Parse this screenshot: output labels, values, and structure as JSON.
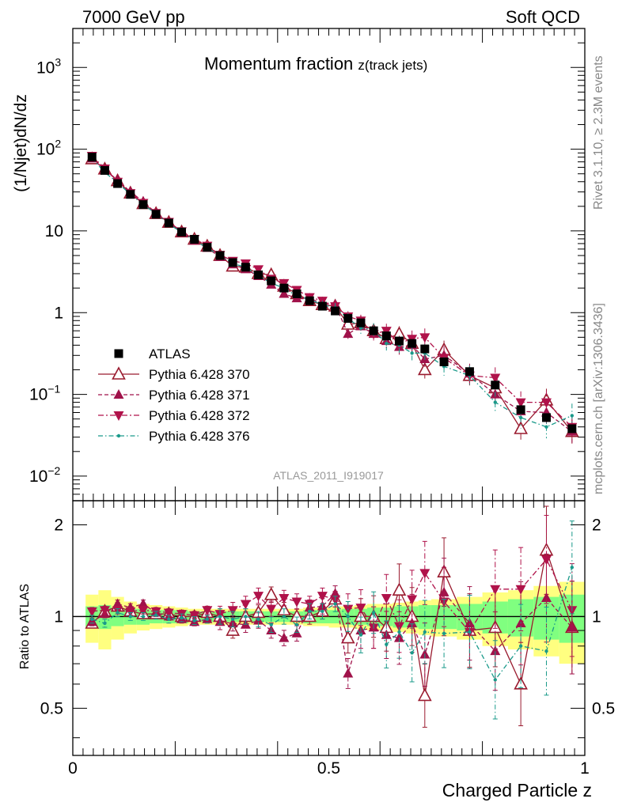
{
  "header": {
    "left": "7000 GeV pp",
    "right": "Soft QCD"
  },
  "side": {
    "rivet": "Rivet 3.1.10, ≥ 2.3M events",
    "mcplots": "mcplots.cern.ch [arXiv:1306.3436]"
  },
  "colors": {
    "atlas": "#000000",
    "p370": "#9a1b2f",
    "p371": "#a0124a",
    "p372": "#b0124a",
    "p376": "#1a9a8a",
    "band_yellow": "#ffff80",
    "band_green": "#80ff80"
  },
  "chart_data": {
    "type": "scatter",
    "title": "Momentum fraction z(track jets)",
    "title_main": "Momentum fraction ",
    "title_sub": "z(track jets)",
    "analysis_label": "ATLAS_2011_I919017",
    "xlabel": "Charged Particle z",
    "ylabel": "(1/Njet)dN/dz",
    "ratio_ylabel": "Ratio to ATLAS",
    "xlim": [
      0,
      1
    ],
    "ylim": [
      0.005,
      3000
    ],
    "yscale": "log",
    "ratio_ylim": [
      0.35,
      2.4
    ],
    "x_ticks": [
      "0",
      "0.5",
      "1"
    ],
    "y_ticks": [
      "10^-2",
      "10^-1",
      "1",
      "10",
      "10^2",
      "10^3"
    ],
    "ratio_ticks": [
      "0.5",
      "1",
      "2"
    ],
    "legend_position": "bottom-left",
    "x": [
      0.0375,
      0.0625,
      0.0875,
      0.1125,
      0.1375,
      0.1625,
      0.1875,
      0.2125,
      0.2375,
      0.2625,
      0.2875,
      0.3125,
      0.3375,
      0.3625,
      0.3875,
      0.4125,
      0.4375,
      0.4625,
      0.4875,
      0.5125,
      0.5375,
      0.5625,
      0.5875,
      0.6125,
      0.6375,
      0.6625,
      0.6875,
      0.725,
      0.775,
      0.825,
      0.875,
      0.925,
      0.975
    ],
    "series": [
      {
        "name": "ATLAS",
        "values": [
          80,
          55,
          38,
          28,
          21,
          16,
          12.5,
          9.7,
          7.9,
          6.3,
          5.0,
          4.1,
          3.6,
          2.9,
          2.45,
          2.0,
          1.7,
          1.4,
          1.2,
          1.05,
          0.85,
          0.75,
          0.6,
          0.52,
          0.45,
          0.42,
          0.36,
          0.25,
          0.19,
          0.13,
          0.065,
          0.052,
          0.038
        ]
      },
      {
        "name": "Pythia 6.428 370",
        "values": [
          76,
          57,
          41,
          29,
          21.5,
          16.3,
          12.7,
          9.7,
          7.9,
          6.5,
          5.0,
          3.7,
          3.6,
          3.0,
          2.9,
          2.1,
          1.7,
          1.4,
          1.25,
          1.2,
          0.72,
          0.75,
          0.6,
          0.48,
          0.55,
          0.42,
          0.2,
          0.35,
          0.17,
          0.12,
          0.038,
          0.085,
          0.035
        ]
      },
      {
        "name": "Pythia 6.428 371",
        "values": [
          77,
          56,
          42,
          30,
          23,
          16.5,
          12.5,
          9.5,
          7.6,
          6.2,
          4.8,
          3.9,
          3.4,
          2.8,
          2.2,
          1.7,
          1.5,
          1.5,
          1.3,
          1.25,
          0.55,
          0.68,
          0.55,
          0.45,
          0.38,
          0.4,
          0.27,
          0.3,
          0.18,
          0.1,
          0.062,
          0.06,
          0.035
        ]
      },
      {
        "name": "Pythia 6.428 372",
        "values": [
          83,
          58,
          40,
          29,
          22,
          16.6,
          12.9,
          9.9,
          8.0,
          6.6,
          5.1,
          4.3,
          4.0,
          3.4,
          2.6,
          2.3,
          1.9,
          1.55,
          1.4,
          1.2,
          0.9,
          0.8,
          0.55,
          0.6,
          0.42,
          0.48,
          0.5,
          0.28,
          0.17,
          0.16,
          0.08,
          0.08,
          0.04
        ]
      },
      {
        "name": "Pythia 6.428 376",
        "values": [
          78,
          52,
          39,
          28,
          21,
          16.2,
          12.2,
          9.6,
          7.7,
          6.2,
          5.0,
          4.0,
          3.6,
          2.85,
          2.3,
          2.0,
          1.6,
          1.45,
          1.25,
          1.15,
          0.85,
          0.65,
          0.62,
          0.42,
          0.4,
          0.32,
          0.32,
          0.22,
          0.17,
          0.08,
          0.052,
          0.04,
          0.055
        ]
      }
    ],
    "ratio_series": [
      {
        "name": "Pythia 6.428 370",
        "values": [
          0.95,
          1.04,
          1.08,
          1.04,
          1.02,
          1.02,
          1.02,
          1.0,
          1.0,
          1.03,
          1.0,
          0.9,
          1.0,
          1.03,
          1.18,
          1.05,
          1.0,
          1.0,
          1.04,
          1.14,
          0.85,
          1.0,
          1.0,
          0.92,
          1.22,
          1.0,
          0.55,
          1.4,
          0.9,
          0.92,
          0.6,
          1.65,
          0.92
        ]
      },
      {
        "name": "Pythia 6.428 371",
        "values": [
          0.96,
          1.02,
          1.1,
          1.07,
          1.1,
          1.03,
          1.0,
          0.98,
          0.96,
          0.98,
          0.96,
          0.95,
          0.94,
          0.97,
          0.9,
          0.85,
          0.88,
          1.07,
          1.08,
          1.19,
          0.65,
          0.9,
          0.92,
          0.87,
          0.85,
          0.95,
          0.75,
          1.2,
          0.95,
          0.77,
          0.95,
          1.15,
          0.92
        ]
      },
      {
        "name": "Pythia 6.428 372",
        "values": [
          1.04,
          1.05,
          1.05,
          1.04,
          1.05,
          1.04,
          1.03,
          1.02,
          1.01,
          1.05,
          1.02,
          1.05,
          1.1,
          1.17,
          1.06,
          1.15,
          1.12,
          1.1,
          1.17,
          1.14,
          1.06,
          1.07,
          0.92,
          1.15,
          0.93,
          1.14,
          1.39,
          1.12,
          0.89,
          1.23,
          1.23,
          1.54,
          1.05
        ]
      },
      {
        "name": "Pythia 6.428 376",
        "values": [
          0.98,
          0.95,
          1.03,
          1.0,
          1.0,
          1.01,
          0.98,
          0.99,
          0.97,
          0.98,
          1.0,
          0.98,
          1.0,
          0.98,
          0.94,
          1.0,
          0.94,
          1.04,
          1.04,
          1.1,
          1.0,
          0.87,
          1.03,
          0.81,
          0.89,
          0.76,
          0.89,
          0.88,
          0.89,
          0.62,
          0.8,
          0.77,
          1.45
        ]
      }
    ],
    "ratio_band_x": [
      0.025,
      0.05,
      0.075,
      0.1,
      0.125,
      0.15,
      0.175,
      0.2,
      0.225,
      0.25,
      0.275,
      0.3,
      0.325,
      0.35,
      0.375,
      0.4,
      0.425,
      0.45,
      0.475,
      0.5,
      0.525,
      0.55,
      0.575,
      0.6,
      0.625,
      0.65,
      0.675,
      0.7,
      0.75,
      0.8,
      0.85,
      0.9,
      0.95,
      1.0
    ],
    "ratio_band_stat": [
      0.08,
      0.09,
      0.07,
      0.06,
      0.06,
      0.05,
      0.05,
      0.05,
      0.04,
      0.04,
      0.04,
      0.04,
      0.04,
      0.04,
      0.04,
      0.04,
      0.04,
      0.05,
      0.05,
      0.05,
      0.06,
      0.06,
      0.07,
      0.07,
      0.08,
      0.08,
      0.09,
      0.09,
      0.1,
      0.12,
      0.14,
      0.16,
      0.18
    ],
    "ratio_band_tot": [
      0.18,
      0.22,
      0.16,
      0.12,
      0.1,
      0.09,
      0.08,
      0.07,
      0.06,
      0.06,
      0.06,
      0.06,
      0.06,
      0.06,
      0.06,
      0.06,
      0.06,
      0.07,
      0.07,
      0.08,
      0.08,
      0.09,
      0.1,
      0.1,
      0.11,
      0.12,
      0.13,
      0.14,
      0.16,
      0.2,
      0.22,
      0.26,
      0.3
    ]
  }
}
